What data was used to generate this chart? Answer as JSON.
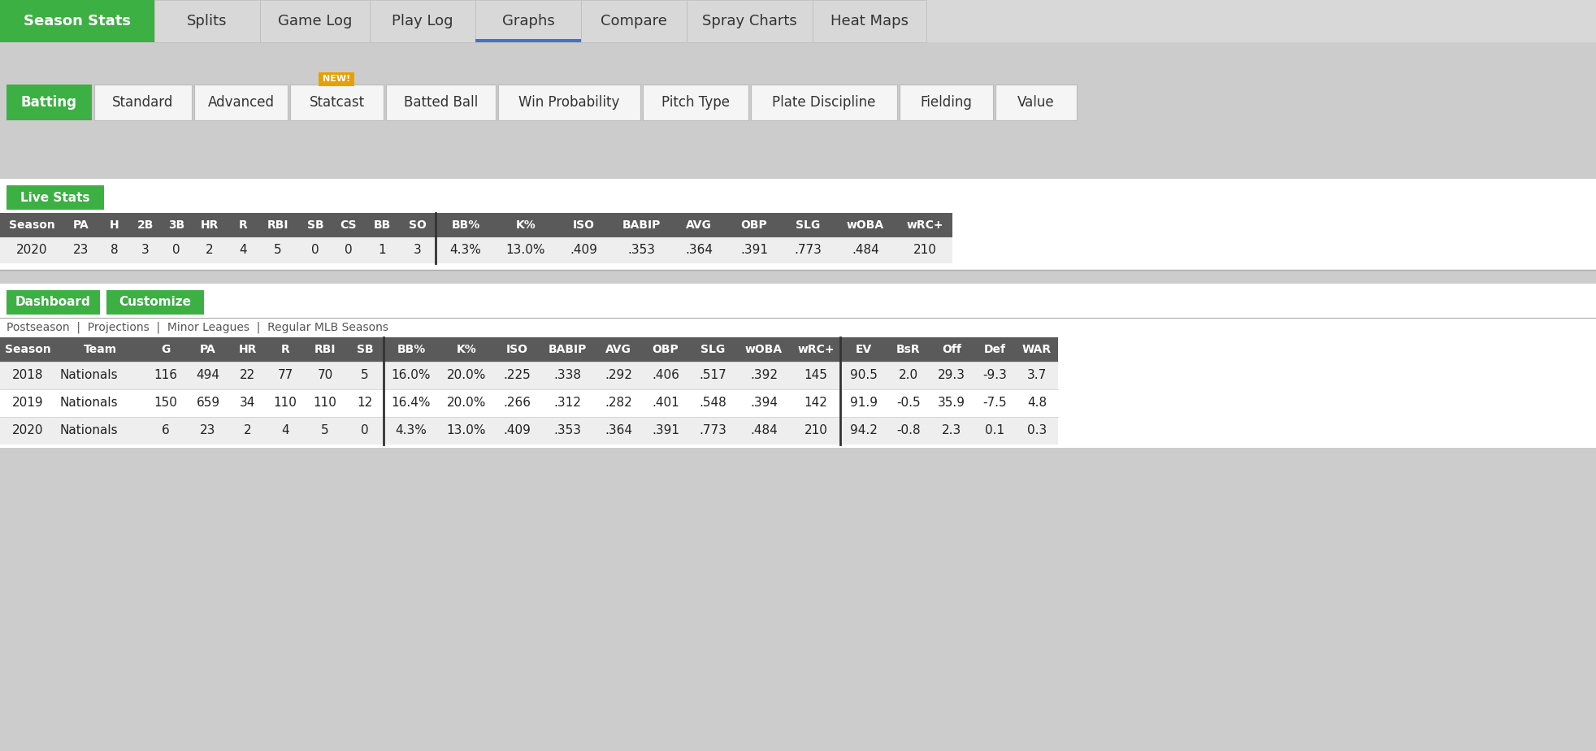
{
  "nav_tabs": [
    "Season Stats",
    "Splits",
    "Game Log",
    "Play Log",
    "Graphs",
    "Compare",
    "Spray Charts",
    "Heat Maps"
  ],
  "nav_active": "Season Stats",
  "nav_active_color": "#3CB043",
  "graphs_underline_color": "#4472C4",
  "nav_bg": "#d8d8d8",
  "batting_tabs": [
    "Batting",
    "Standard",
    "Advanced",
    "Statcast",
    "Batted Ball",
    "Win Probability",
    "Pitch Type",
    "Plate Discipline",
    "Fielding",
    "Value"
  ],
  "batting_active": "Batting",
  "new_badge_tab": "Statcast",
  "live_stats_label": "Live Stats",
  "live_header": [
    "Season",
    "PA",
    "H",
    "2B",
    "3B",
    "HR",
    "R",
    "RBI",
    "SB",
    "CS",
    "BB",
    "SO",
    "BB%",
    "K%",
    "ISO",
    "BABIP",
    "AVG",
    "OBP",
    "SLG",
    "wOBA",
    "wRC+"
  ],
  "live_data": [
    [
      "2020",
      "23",
      "8",
      "3",
      "0",
      "2",
      "4",
      "5",
      "0",
      "0",
      "1",
      "3",
      "4.3%",
      "13.0%",
      ".409",
      ".353",
      ".364",
      ".391",
      ".773",
      ".484",
      "210"
    ]
  ],
  "dashboard_label": "Dashboard",
  "customize_label": "Customize",
  "filter_text": "Postseason  |  Projections  |  Minor Leagues  |  Regular MLB Seasons",
  "dash_header": [
    "Season",
    "Team",
    "G",
    "PA",
    "HR",
    "R",
    "RBI",
    "SB",
    "BB%",
    "K%",
    "ISO",
    "BABIP",
    "AVG",
    "OBP",
    "SLG",
    "wOBA",
    "wRC+",
    "EV",
    "BsR",
    "Off",
    "Def",
    "WAR"
  ],
  "dash_data": [
    [
      "2018",
      "Nationals",
      "116",
      "494",
      "22",
      "77",
      "70",
      "5",
      "16.0%",
      "20.0%",
      ".225",
      ".338",
      ".292",
      ".406",
      ".517",
      ".392",
      "145",
      "90.5",
      "2.0",
      "29.3",
      "-9.3",
      "3.7"
    ],
    [
      "2019",
      "Nationals",
      "150",
      "659",
      "34",
      "110",
      "110",
      "12",
      "16.4%",
      "20.0%",
      ".266",
      ".312",
      ".282",
      ".401",
      ".548",
      ".394",
      "142",
      "91.9",
      "-0.5",
      "35.9",
      "-7.5",
      "4.8"
    ],
    [
      "2020",
      "Nationals",
      "6",
      "23",
      "2",
      "4",
      "5",
      "0",
      "4.3%",
      "13.0%",
      ".409",
      ".353",
      ".364",
      ".391",
      ".773",
      ".484",
      "210",
      "94.2",
      "-0.8",
      "2.3",
      "0.1",
      "0.3"
    ]
  ],
  "header_bg": "#5a5a5a",
  "row_bg_even": "#eeeeee",
  "row_bg_odd": "#ffffff",
  "green_button": "#3CB043",
  "outer_bg": "#cccccc",
  "nav_widths": [
    190,
    130,
    135,
    130,
    130,
    130,
    155,
    140
  ],
  "bat_widths": [
    105,
    120,
    115,
    115,
    135,
    175,
    130,
    180,
    115,
    100
  ],
  "live_col_widths": [
    78,
    44,
    38,
    38,
    38,
    44,
    38,
    48,
    44,
    38,
    44,
    44,
    74,
    74,
    68,
    74,
    68,
    68,
    64,
    78,
    68
  ],
  "dash_col_widths": [
    68,
    110,
    52,
    52,
    46,
    46,
    52,
    46,
    68,
    68,
    56,
    68,
    58,
    58,
    58,
    68,
    60,
    58,
    52,
    54,
    52,
    52
  ]
}
